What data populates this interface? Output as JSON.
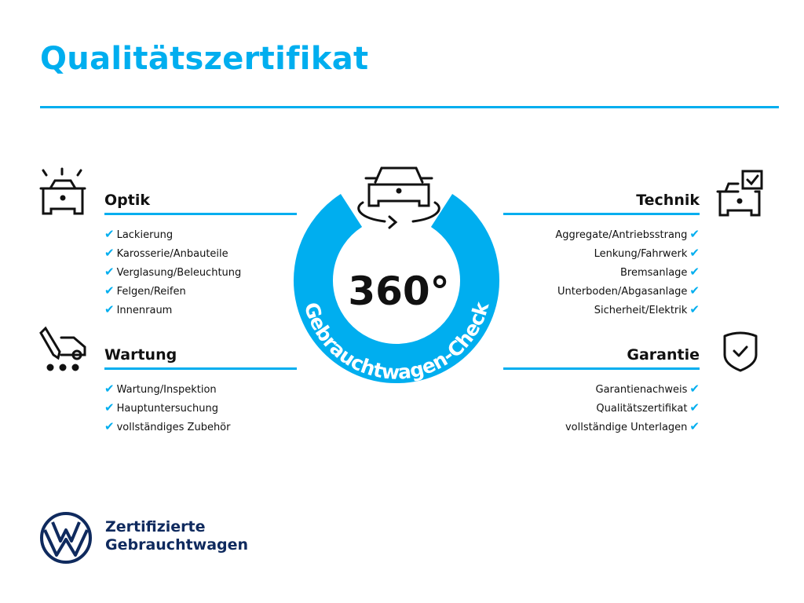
{
  "title": "Qualitätszertifikat",
  "center": {
    "degrees": "360°",
    "ring_text": "Gebrauchtwagen-Check"
  },
  "sections": {
    "optik": {
      "heading": "Optik",
      "items": [
        "Lackierung",
        "Karosserie/Anbauteile",
        "Verglasung/Beleuchtung",
        "Felgen/Reifen",
        "Innenraum"
      ]
    },
    "wartung": {
      "heading": "Wartung",
      "items": [
        "Wartung/Inspektion",
        "Hauptuntersuchung",
        "vollständiges Zubehör"
      ]
    },
    "technik": {
      "heading": "Technik",
      "items": [
        "Aggregate/Antriebsstrang",
        "Lenkung/Fahrwerk",
        "Bremsanlage",
        "Unterboden/Abgasanlage",
        "Sicherheit/Elektrik"
      ]
    },
    "garantie": {
      "heading": "Garantie",
      "items": [
        "Garantienachweis",
        "Qualitätszertifikat",
        "vollständige Unterlagen"
      ]
    }
  },
  "check_glyph": "✔",
  "logo": {
    "line1": "Zertifizierte",
    "line2": "Gebrauchtwagen"
  },
  "colors": {
    "accent": "#00aeef",
    "brand": "#0f2a5e"
  }
}
